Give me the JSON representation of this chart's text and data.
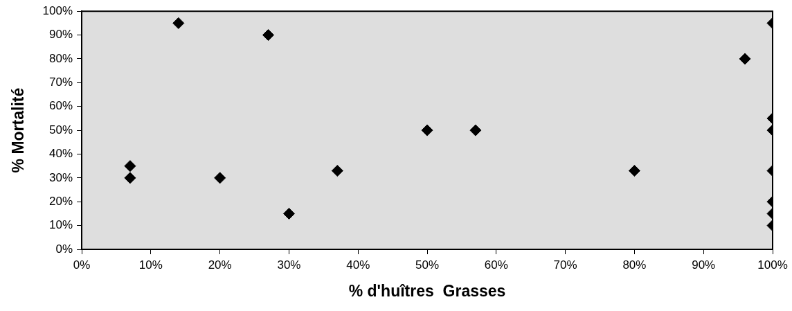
{
  "chart_data": {
    "type": "scatter",
    "xlabel": "% d'huîtres  Grasses",
    "ylabel": "% Mortalité",
    "x": [
      7,
      7,
      14,
      20,
      27,
      30,
      37,
      50,
      57,
      80,
      96,
      100,
      100,
      100,
      100,
      100,
      100,
      100
    ],
    "values": [
      35,
      30,
      95,
      30,
      90,
      15,
      33,
      50,
      50,
      33,
      80,
      95,
      55,
      50,
      33,
      20,
      15,
      10
    ],
    "color": "#000000",
    "marker": "diamond",
    "grid": false,
    "legend": false,
    "xlim": [
      0,
      100
    ],
    "ylim": [
      0,
      100
    ],
    "xticks": [
      {
        "value": 0,
        "label": "0%"
      },
      {
        "value": 10,
        "label": "10%"
      },
      {
        "value": 20,
        "label": "20%"
      },
      {
        "value": 30,
        "label": "30%"
      },
      {
        "value": 40,
        "label": "40%"
      },
      {
        "value": 50,
        "label": "50%"
      },
      {
        "value": 60,
        "label": "60%"
      },
      {
        "value": 70,
        "label": "70%"
      },
      {
        "value": 80,
        "label": "80%"
      },
      {
        "value": 90,
        "label": "90%"
      },
      {
        "value": 100,
        "label": "100%"
      }
    ],
    "yticks": [
      {
        "value": 0,
        "label": "0%"
      },
      {
        "value": 10,
        "label": "10%"
      },
      {
        "value": 20,
        "label": "20%"
      },
      {
        "value": 30,
        "label": "30%"
      },
      {
        "value": 40,
        "label": "40%"
      },
      {
        "value": 50,
        "label": "50%"
      },
      {
        "value": 60,
        "label": "60%"
      },
      {
        "value": 70,
        "label": "70%"
      },
      {
        "value": 80,
        "label": "80%"
      },
      {
        "value": 90,
        "label": "90%"
      },
      {
        "value": 100,
        "label": "100%"
      }
    ]
  }
}
